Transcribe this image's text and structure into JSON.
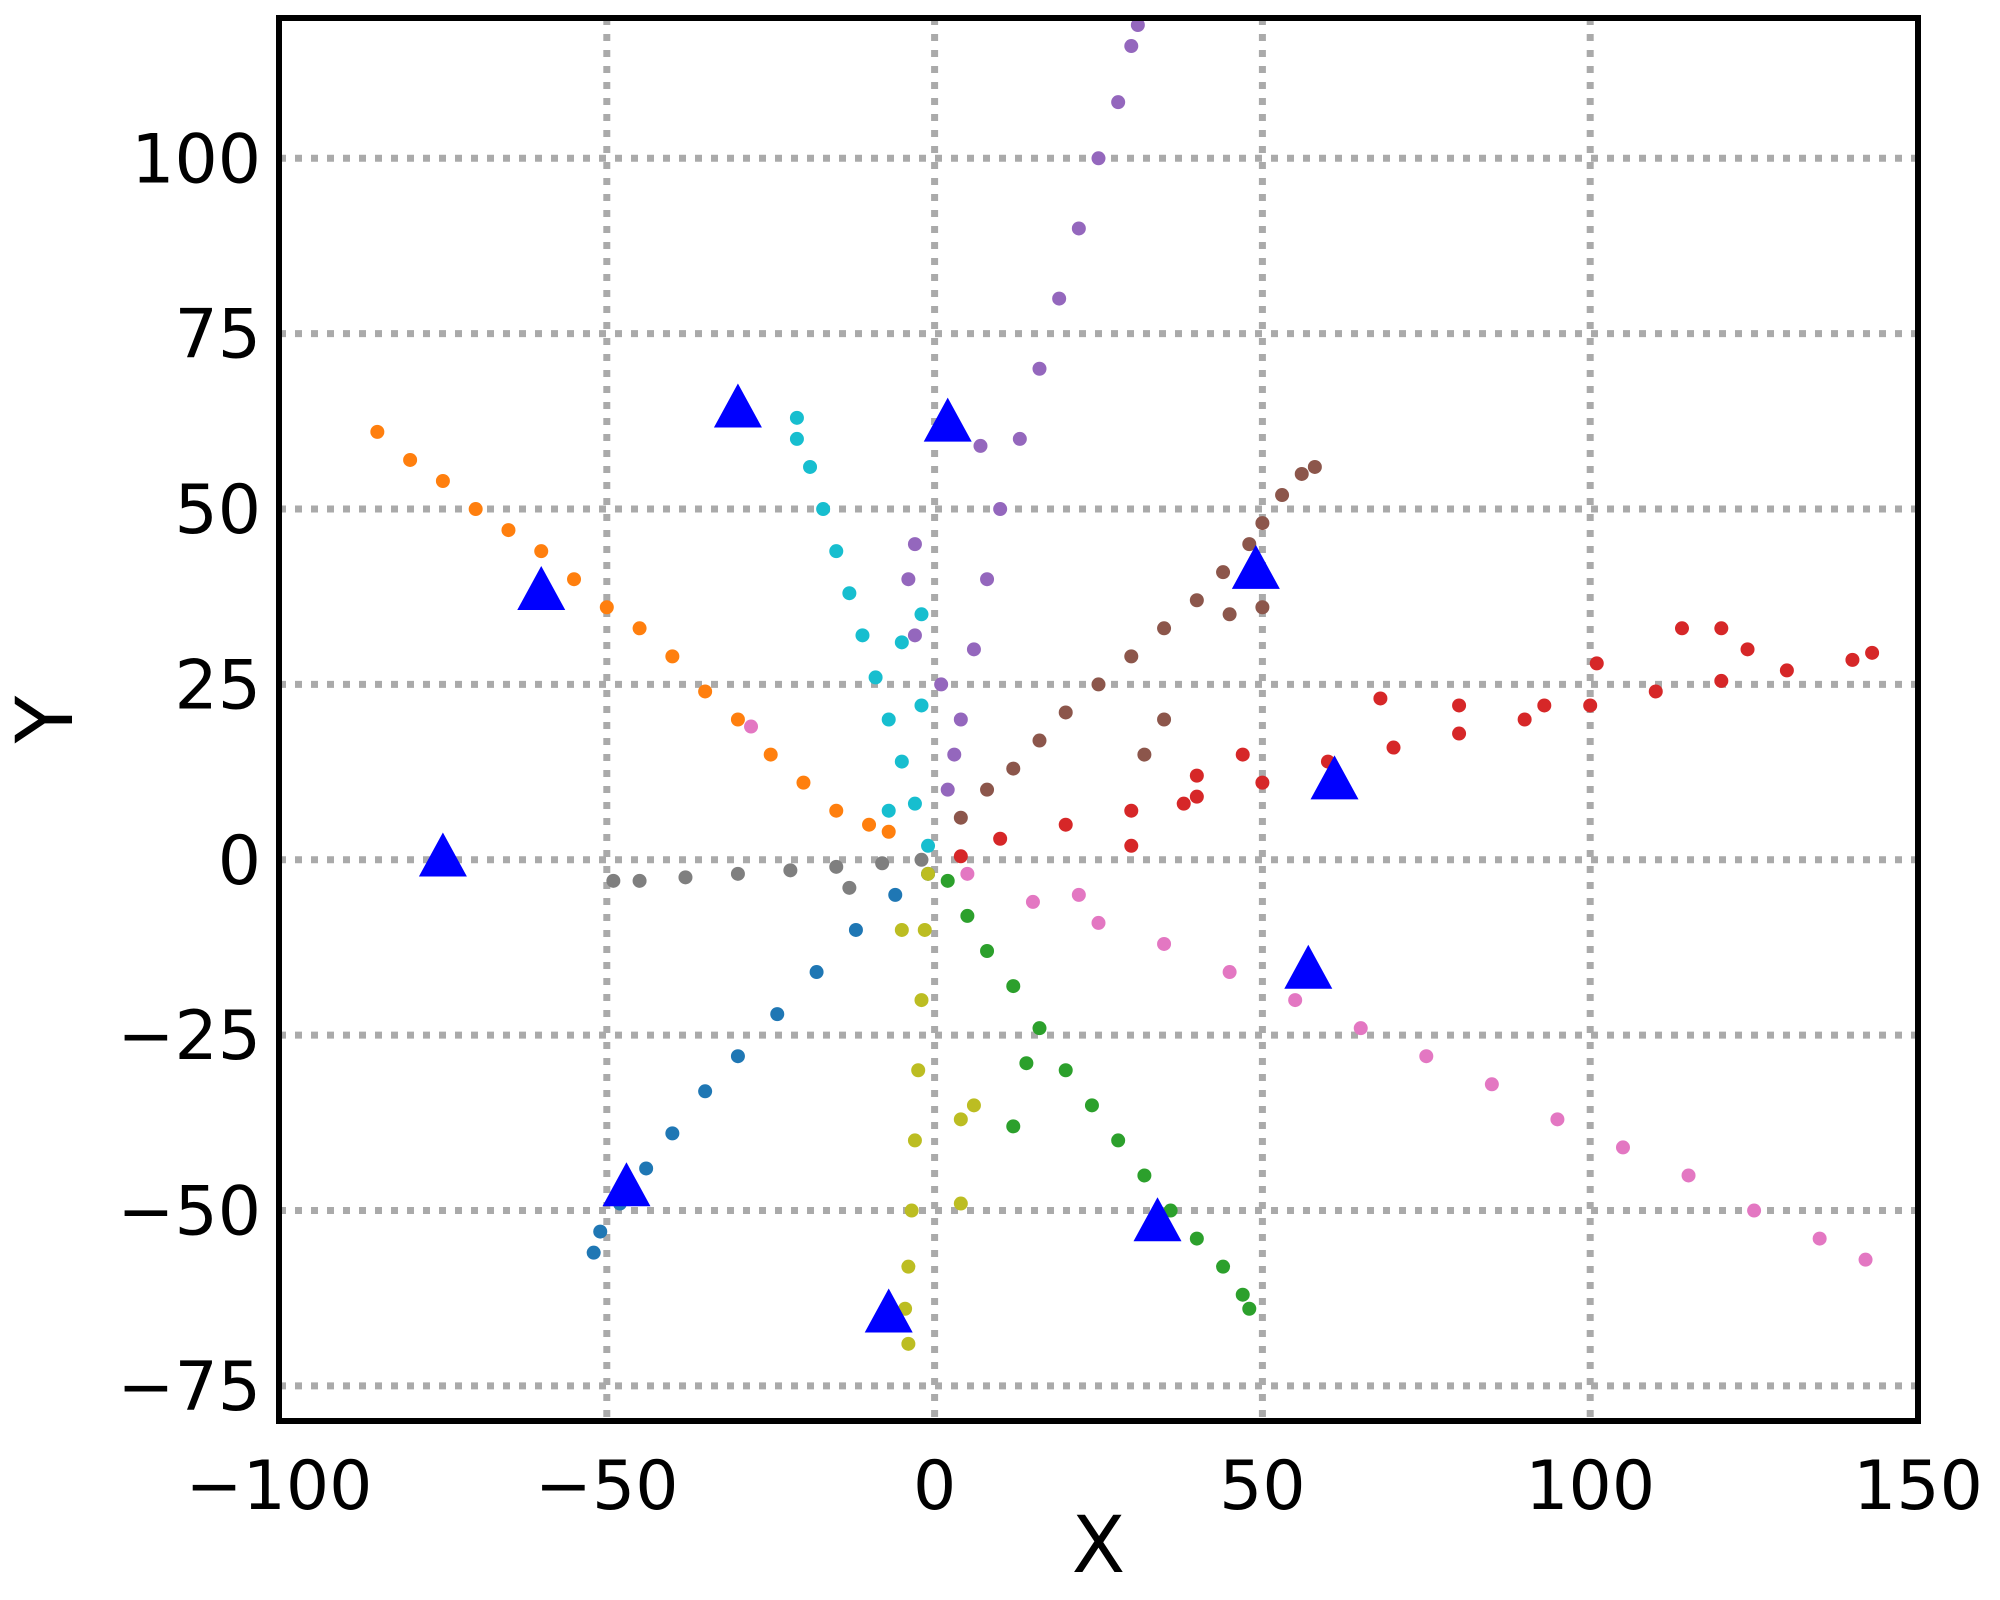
{
  "chart_data": {
    "type": "scatter",
    "xlabel": "X",
    "ylabel": "Y",
    "xlim": [
      -100,
      150
    ],
    "ylim": [
      -80,
      120
    ],
    "xticks": [
      -100,
      -50,
      0,
      50,
      100,
      150
    ],
    "yticks": [
      -75,
      -50,
      -25,
      0,
      25,
      50,
      75,
      100
    ],
    "xtick_labels": [
      "−100",
      "−50",
      "0",
      "50",
      "100",
      "150"
    ],
    "ytick_labels": [
      "−75",
      "−50",
      "−25",
      "0",
      "25",
      "50",
      "75",
      "100"
    ],
    "grid": true,
    "grid_style": "dotted",
    "grid_color": "#aaaaaa",
    "legend": "none",
    "series": [
      {
        "color": "#1f77b4",
        "marker": "circle",
        "points": [
          [
            -1,
            -2
          ],
          [
            -6,
            -5
          ],
          [
            -12,
            -10
          ],
          [
            -18,
            -16
          ],
          [
            -24,
            -22
          ],
          [
            -30,
            -28
          ],
          [
            -35,
            -33
          ],
          [
            -40,
            -39
          ],
          [
            -44,
            -44
          ],
          [
            -48,
            -49
          ],
          [
            -51,
            -53
          ],
          [
            -52,
            -56
          ]
        ]
      },
      {
        "color": "#ff7f0e",
        "marker": "circle",
        "points": [
          [
            -85,
            61
          ],
          [
            -80,
            57
          ],
          [
            -75,
            54
          ],
          [
            -70,
            50
          ],
          [
            -65,
            47
          ],
          [
            -60,
            44
          ],
          [
            -55,
            40
          ],
          [
            -50,
            36
          ],
          [
            -45,
            33
          ],
          [
            -40,
            29
          ],
          [
            -35,
            24
          ],
          [
            -30,
            20
          ],
          [
            -25,
            15
          ],
          [
            -20,
            11
          ],
          [
            -15,
            7
          ],
          [
            -10,
            5
          ],
          [
            -7,
            4
          ]
        ]
      },
      {
        "color": "#2ca02c",
        "marker": "circle",
        "points": [
          [
            2,
            -3
          ],
          [
            5,
            -8
          ],
          [
            8,
            -13
          ],
          [
            12,
            -18
          ],
          [
            16,
            -24
          ],
          [
            20,
            -30
          ],
          [
            24,
            -35
          ],
          [
            28,
            -40
          ],
          [
            32,
            -45
          ],
          [
            36,
            -50
          ],
          [
            40,
            -54
          ],
          [
            44,
            -58
          ],
          [
            47,
            -62
          ],
          [
            48,
            -64
          ],
          [
            14,
            -29
          ],
          [
            12,
            -38
          ]
        ]
      },
      {
        "color": "#d62728",
        "marker": "circle",
        "points": [
          [
            4,
            0.5
          ],
          [
            10,
            3
          ],
          [
            20,
            5
          ],
          [
            30,
            7
          ],
          [
            40,
            9
          ],
          [
            50,
            11
          ],
          [
            60,
            14
          ],
          [
            70,
            16
          ],
          [
            80,
            18
          ],
          [
            90,
            20
          ],
          [
            100,
            22
          ],
          [
            110,
            24
          ],
          [
            120,
            25.5
          ],
          [
            130,
            27
          ],
          [
            140,
            28.5
          ],
          [
            143,
            29.5
          ],
          [
            114,
            33
          ],
          [
            120,
            33
          ],
          [
            124,
            30
          ],
          [
            101,
            28
          ],
          [
            68,
            23
          ],
          [
            80,
            22
          ],
          [
            93,
            22
          ],
          [
            47,
            15
          ],
          [
            40,
            12
          ],
          [
            38,
            8
          ],
          [
            30,
            2
          ]
        ]
      },
      {
        "color": "#9467bd",
        "marker": "circle",
        "points": [
          [
            2,
            10
          ],
          [
            4,
            20
          ],
          [
            6,
            30
          ],
          [
            8,
            40
          ],
          [
            10,
            50
          ],
          [
            13,
            60
          ],
          [
            16,
            70
          ],
          [
            19,
            80
          ],
          [
            22,
            90
          ],
          [
            25,
            100
          ],
          [
            28,
            108
          ],
          [
            30,
            116
          ],
          [
            31,
            119
          ],
          [
            7,
            59
          ],
          [
            -3,
            45
          ],
          [
            -4,
            40
          ],
          [
            -3,
            32
          ],
          [
            1,
            25
          ],
          [
            3,
            15
          ]
        ]
      },
      {
        "color": "#8c564b",
        "marker": "circle",
        "points": [
          [
            4,
            6
          ],
          [
            8,
            10
          ],
          [
            12,
            13
          ],
          [
            16,
            17
          ],
          [
            20,
            21
          ],
          [
            25,
            25
          ],
          [
            30,
            29
          ],
          [
            35,
            33
          ],
          [
            40,
            37
          ],
          [
            44,
            41
          ],
          [
            48,
            45
          ],
          [
            50,
            48
          ],
          [
            53,
            52
          ],
          [
            56,
            55
          ],
          [
            58,
            56
          ],
          [
            45,
            35
          ],
          [
            50,
            36
          ],
          [
            35,
            20
          ],
          [
            32,
            15
          ]
        ]
      },
      {
        "color": "#e377c2",
        "marker": "circle",
        "points": [
          [
            5,
            -2
          ],
          [
            15,
            -6
          ],
          [
            25,
            -9
          ],
          [
            35,
            -12
          ],
          [
            45,
            -16
          ],
          [
            55,
            -20
          ],
          [
            65,
            -24
          ],
          [
            75,
            -28
          ],
          [
            85,
            -32
          ],
          [
            95,
            -37
          ],
          [
            105,
            -41
          ],
          [
            115,
            -45
          ],
          [
            125,
            -50
          ],
          [
            135,
            -54
          ],
          [
            142,
            -57
          ],
          [
            22,
            -5
          ],
          [
            -28,
            19
          ]
        ]
      },
      {
        "color": "#7f7f7f",
        "marker": "circle",
        "points": [
          [
            -2,
            0
          ],
          [
            -8,
            -0.5
          ],
          [
            -15,
            -1
          ],
          [
            -22,
            -1.5
          ],
          [
            -30,
            -2
          ],
          [
            -38,
            -2.5
          ],
          [
            -45,
            -3
          ],
          [
            -49,
            -3
          ],
          [
            -13,
            -4
          ]
        ]
      },
      {
        "color": "#bcbd22",
        "marker": "circle",
        "points": [
          [
            -1,
            -2
          ],
          [
            -1.5,
            -10
          ],
          [
            -2,
            -20
          ],
          [
            -2.5,
            -30
          ],
          [
            -3,
            -40
          ],
          [
            -3.5,
            -50
          ],
          [
            -4,
            -58
          ],
          [
            -4.5,
            -64
          ],
          [
            -4,
            -69
          ],
          [
            -5,
            -10
          ],
          [
            6,
            -35
          ],
          [
            4,
            -37
          ],
          [
            4,
            -49
          ]
        ]
      },
      {
        "color": "#17becf",
        "marker": "circle",
        "points": [
          [
            -1,
            2
          ],
          [
            -3,
            8
          ],
          [
            -5,
            14
          ],
          [
            -7,
            20
          ],
          [
            -9,
            26
          ],
          [
            -11,
            32
          ],
          [
            -13,
            38
          ],
          [
            -15,
            44
          ],
          [
            -17,
            50
          ],
          [
            -19,
            56
          ],
          [
            -21,
            60
          ],
          [
            -21,
            63
          ],
          [
            -5,
            31
          ],
          [
            -2,
            35
          ],
          [
            -2,
            22
          ],
          [
            -7,
            7
          ]
        ]
      },
      {
        "color": "#0000ff",
        "marker": "triangle",
        "points": [
          [
            -30,
            64
          ],
          [
            2,
            62
          ],
          [
            -60,
            38
          ],
          [
            49,
            41
          ],
          [
            -75,
            0
          ],
          [
            61,
            11
          ],
          [
            57,
            -16
          ],
          [
            -47,
            -47
          ],
          [
            34,
            -52
          ],
          [
            -7,
            -65
          ]
        ]
      }
    ]
  }
}
